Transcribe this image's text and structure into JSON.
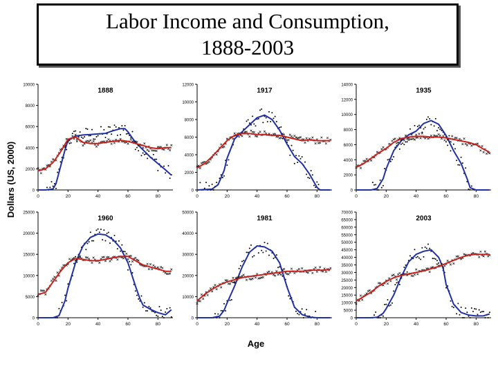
{
  "title": "Labor Income and Consumption,\n1888-2003",
  "ylabel": "Dollars (US, 2000)",
  "xlabel": "Age",
  "colors": {
    "labor_income": "#1f2fa6",
    "consumption": "#c8201b",
    "points": "#000000"
  },
  "chart_data": [
    {
      "type": "line",
      "title": "1888",
      "xlim": [
        0,
        90
      ],
      "ylim": [
        0,
        10000
      ],
      "xticks": [
        "0",
        "20",
        "40",
        "60",
        "80"
      ],
      "yticks": [
        "0",
        "2000",
        "4000",
        "6000",
        "8000",
        "10000"
      ],
      "series": [
        {
          "role": "labor_income",
          "x": [
            0,
            5,
            10,
            12,
            15,
            18,
            20,
            25,
            30,
            35,
            40,
            45,
            50,
            55,
            58,
            60,
            65,
            70,
            75,
            80,
            85,
            89
          ],
          "y": [
            0,
            0,
            100,
            600,
            2200,
            3800,
            4700,
            5100,
            5200,
            5250,
            5300,
            5350,
            5600,
            5800,
            5800,
            5500,
            4500,
            3800,
            3100,
            2500,
            1900,
            1400
          ]
        },
        {
          "role": "consumption",
          "x": [
            0,
            5,
            10,
            15,
            20,
            25,
            30,
            35,
            40,
            45,
            50,
            55,
            60,
            65,
            70,
            75,
            80,
            85,
            89
          ],
          "y": [
            1800,
            2000,
            2600,
            3600,
            4800,
            5000,
            4500,
            4400,
            4400,
            4500,
            4600,
            4700,
            4600,
            4400,
            4200,
            4000,
            3900,
            4000,
            4000
          ]
        }
      ]
    },
    {
      "type": "line",
      "title": "1917",
      "xlim": [
        0,
        90
      ],
      "ylim": [
        0,
        12000
      ],
      "xticks": [
        "0",
        "20",
        "40",
        "60",
        "80"
      ],
      "yticks": [
        "0",
        "2000",
        "4000",
        "6000",
        "8000",
        "10000",
        "12000"
      ],
      "series": [
        {
          "role": "labor_income",
          "x": [
            0,
            10,
            14,
            18,
            20,
            25,
            30,
            35,
            40,
            45,
            50,
            55,
            60,
            65,
            70,
            75,
            80,
            82,
            85,
            89
          ],
          "y": [
            0,
            100,
            600,
            2200,
            3600,
            5800,
            6600,
            7400,
            8200,
            8500,
            8000,
            6800,
            5200,
            3800,
            3000,
            1800,
            300,
            0,
            0,
            0
          ]
        },
        {
          "role": "consumption",
          "x": [
            0,
            5,
            10,
            15,
            20,
            25,
            30,
            35,
            40,
            45,
            50,
            55,
            60,
            65,
            70,
            75,
            80,
            85,
            89
          ],
          "y": [
            2500,
            3000,
            3800,
            4700,
            5600,
            6200,
            6400,
            6400,
            6300,
            6300,
            6200,
            6200,
            6000,
            5800,
            5600,
            5700,
            5600,
            5600,
            5600
          ]
        }
      ]
    },
    {
      "type": "line",
      "title": "1935",
      "xlim": [
        0,
        90
      ],
      "ylim": [
        0,
        14000
      ],
      "xticks": [
        "0",
        "20",
        "40",
        "60",
        "80"
      ],
      "yticks": [
        "0",
        "2000",
        "4000",
        "6000",
        "8000",
        "10000",
        "12000",
        "14000"
      ],
      "series": [
        {
          "role": "labor_income",
          "x": [
            0,
            10,
            14,
            18,
            20,
            25,
            30,
            35,
            40,
            45,
            50,
            55,
            60,
            65,
            70,
            74,
            76,
            80,
            85,
            89
          ],
          "y": [
            0,
            0,
            200,
            1500,
            2800,
            5200,
            6500,
            7300,
            7800,
            8800,
            9200,
            8700,
            7200,
            5200,
            3500,
            1500,
            300,
            0,
            0,
            0
          ]
        },
        {
          "role": "consumption",
          "x": [
            0,
            5,
            10,
            15,
            20,
            25,
            30,
            35,
            40,
            45,
            50,
            55,
            60,
            65,
            70,
            75,
            80,
            85,
            89
          ],
          "y": [
            3000,
            3500,
            4200,
            4900,
            5500,
            6300,
            6800,
            7000,
            7100,
            7100,
            7000,
            7000,
            6900,
            6700,
            6500,
            6300,
            6000,
            5400,
            5000
          ]
        }
      ]
    },
    {
      "type": "line",
      "title": "1960",
      "xlim": [
        0,
        90
      ],
      "ylim": [
        0,
        25000
      ],
      "xticks": [
        "0",
        "20",
        "40",
        "60",
        "80"
      ],
      "yticks": [
        "0",
        "5000",
        "10000",
        "15000",
        "20000",
        "25000"
      ],
      "series": [
        {
          "role": "labor_income",
          "x": [
            0,
            10,
            14,
            18,
            20,
            25,
            30,
            35,
            40,
            45,
            50,
            55,
            60,
            65,
            68,
            70,
            75,
            80,
            85,
            89
          ],
          "y": [
            0,
            0,
            500,
            4000,
            7000,
            13000,
            17000,
            19000,
            19800,
            19600,
            18500,
            16500,
            13000,
            7500,
            4500,
            3000,
            2000,
            1200,
            700,
            1900
          ]
        },
        {
          "role": "consumption",
          "x": [
            0,
            5,
            10,
            15,
            20,
            25,
            30,
            35,
            40,
            45,
            50,
            55,
            60,
            65,
            70,
            75,
            80,
            85,
            89
          ],
          "y": [
            5500,
            6000,
            8500,
            11000,
            13000,
            14000,
            13800,
            13500,
            13500,
            13800,
            14200,
            14500,
            14500,
            13500,
            12500,
            12000,
            11500,
            11000,
            11000
          ]
        }
      ]
    },
    {
      "type": "line",
      "title": "1981",
      "xlim": [
        0,
        90
      ],
      "ylim": [
        0,
        50000
      ],
      "xticks": [
        "0",
        "20",
        "40",
        "60",
        "80"
      ],
      "yticks": [
        "0",
        "10000",
        "20000",
        "30000",
        "40000",
        "50000"
      ],
      "series": [
        {
          "role": "labor_income",
          "x": [
            0,
            10,
            15,
            18,
            20,
            25,
            30,
            35,
            40,
            45,
            50,
            55,
            60,
            65,
            70,
            75,
            80,
            85,
            89
          ],
          "y": [
            0,
            0,
            800,
            3500,
            7000,
            15000,
            24000,
            31000,
            34000,
            33500,
            31500,
            26000,
            14500,
            5000,
            1500,
            300,
            0,
            0,
            0
          ]
        },
        {
          "role": "consumption",
          "x": [
            0,
            5,
            10,
            15,
            20,
            25,
            30,
            35,
            40,
            45,
            50,
            55,
            60,
            65,
            70,
            75,
            80,
            85,
            89
          ],
          "y": [
            8000,
            11000,
            13500,
            15500,
            17000,
            18000,
            19000,
            19500,
            20000,
            20500,
            21000,
            21500,
            22000,
            22000,
            22000,
            22500,
            22500,
            22500,
            23000
          ]
        }
      ]
    },
    {
      "type": "line",
      "title": "2003",
      "xlim": [
        0,
        90
      ],
      "ylim": [
        0,
        70000
      ],
      "xticks": [
        "0",
        "20",
        "40",
        "60",
        "80"
      ],
      "yticks": [
        "0",
        "5000",
        "10000",
        "15000",
        "20000",
        "25000",
        "30000",
        "35000",
        "40000",
        "45000",
        "50000",
        "55000",
        "60000",
        "65000",
        "70000"
      ],
      "series": [
        {
          "role": "labor_income",
          "x": [
            0,
            10,
            14,
            18,
            20,
            25,
            30,
            35,
            40,
            45,
            50,
            55,
            58,
            60,
            65,
            70,
            75,
            80,
            85,
            89
          ],
          "y": [
            0,
            0,
            300,
            3000,
            6000,
            15000,
            27000,
            37000,
            42000,
            44000,
            45000,
            40000,
            33000,
            22000,
            9000,
            3500,
            1800,
            1200,
            1300,
            2500
          ]
        },
        {
          "role": "consumption",
          "x": [
            0,
            5,
            10,
            15,
            20,
            25,
            30,
            35,
            40,
            45,
            50,
            55,
            60,
            65,
            70,
            75,
            80,
            85,
            89
          ],
          "y": [
            11000,
            14000,
            17000,
            21000,
            24000,
            26500,
            28000,
            29000,
            30000,
            31000,
            32500,
            34000,
            36000,
            38000,
            40000,
            41500,
            42000,
            42000,
            42000
          ]
        }
      ]
    }
  ]
}
